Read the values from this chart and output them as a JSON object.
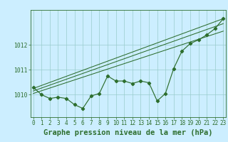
{
  "hours": [
    0,
    1,
    2,
    3,
    4,
    5,
    6,
    7,
    8,
    9,
    10,
    11,
    12,
    13,
    14,
    15,
    16,
    17,
    18,
    19,
    20,
    21,
    22,
    23
  ],
  "pressure": [
    1010.3,
    1010.0,
    1009.85,
    1009.9,
    1009.85,
    1009.6,
    1009.45,
    1009.95,
    1010.05,
    1010.75,
    1010.55,
    1010.55,
    1010.45,
    1010.55,
    1010.48,
    1009.75,
    1010.05,
    1011.05,
    1011.75,
    1012.05,
    1012.2,
    1012.4,
    1012.65,
    1013.05
  ],
  "trend_lines": [
    [
      1010.05,
      1012.55
    ],
    [
      1010.15,
      1012.85
    ],
    [
      1010.25,
      1013.05
    ]
  ],
  "bg_color": "#cceeff",
  "line_color": "#2d6e2d",
  "grid_color": "#99cccc",
  "ylabel_ticks": [
    1010,
    1011,
    1012
  ],
  "ymin": 1009.1,
  "ymax": 1013.4,
  "xmin": 0,
  "xmax": 23,
  "xlabel": "Graphe pression niveau de la mer (hPa)",
  "tick_fontsize": 5.8,
  "xlabel_fontsize": 7.5
}
